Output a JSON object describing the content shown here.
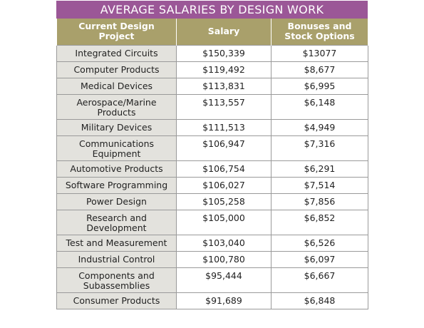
{
  "chart_data": {
    "type": "table",
    "title": "AVERAGE SALARIES BY DESIGN WORK",
    "columns": [
      "Current Design Project",
      "Salary",
      "Bonuses and Stock Options"
    ],
    "rows": [
      {
        "project": "Integrated Circuits",
        "salary": "$150,339",
        "bonus": "$13077"
      },
      {
        "project": "Computer Products",
        "salary": "$119,492",
        "bonus": "$8,677"
      },
      {
        "project": "Medical Devices",
        "salary": "$113,831",
        "bonus": "$6,995"
      },
      {
        "project": "Aerospace/Marine Products",
        "salary": "$113,557",
        "bonus": "$6,148"
      },
      {
        "project": "Military Devices",
        "salary": "$111,513",
        "bonus": "$4,949"
      },
      {
        "project": "Communications Equipment",
        "salary": "$106,947",
        "bonus": "$7,316"
      },
      {
        "project": "Automotive Products",
        "salary": "$106,754",
        "bonus": "$6,291"
      },
      {
        "project": "Software Programming",
        "salary": "$106,027",
        "bonus": "$7,514"
      },
      {
        "project": "Power Design",
        "salary": "$105,258",
        "bonus": "$7,856"
      },
      {
        "project": "Research and Development",
        "salary": "$105,000",
        "bonus": "$6,852"
      },
      {
        "project": "Test and Measurement",
        "salary": "$103,040",
        "bonus": "$6,526"
      },
      {
        "project": "Industrial Control",
        "salary": "$100,780",
        "bonus": "$6,097"
      },
      {
        "project": "Components and Subassemblies",
        "salary": "$95,444",
        "bonus": "$6,667"
      },
      {
        "project": "Consumer Products",
        "salary": "$91,689",
        "bonus": "$6,848"
      }
    ]
  },
  "colors": {
    "title_bg": "#9b5797",
    "header_bg": "#a9a06b",
    "project_cell_bg": "#e3e2dd",
    "grid_line": "#9a9a9a"
  }
}
